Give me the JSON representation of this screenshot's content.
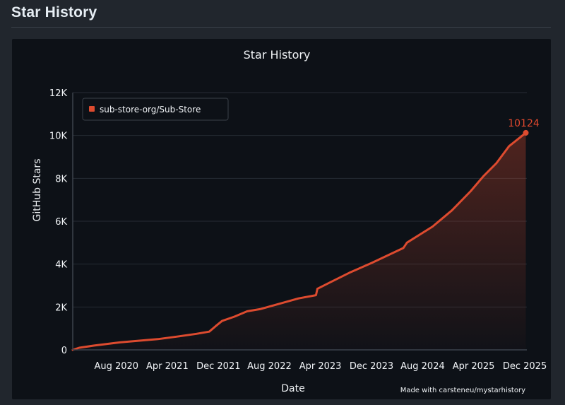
{
  "page": {
    "heading": "Star History"
  },
  "chart_data": {
    "type": "line",
    "title": "Star History",
    "xlabel": "Date",
    "ylabel": "GitHub Stars",
    "xlim": [
      "2020-01-20",
      "2025-12-25"
    ],
    "ylim": [
      0,
      12000
    ],
    "x_ticks": [
      {
        "date": "2020-08-15",
        "label": "Aug 2020"
      },
      {
        "date": "2021-04-15",
        "label": "Apr 2021"
      },
      {
        "date": "2021-12-15",
        "label": "Dec 2021"
      },
      {
        "date": "2022-08-15",
        "label": "Aug 2022"
      },
      {
        "date": "2023-04-15",
        "label": "Apr 2023"
      },
      {
        "date": "2023-12-15",
        "label": "Dec 2023"
      },
      {
        "date": "2024-08-15",
        "label": "Aug 2024"
      },
      {
        "date": "2025-04-15",
        "label": "Apr 2025"
      },
      {
        "date": "2025-12-15",
        "label": "Dec 2025"
      }
    ],
    "y_ticks": [
      {
        "value": 0,
        "label": "0"
      },
      {
        "value": 2000,
        "label": "2K"
      },
      {
        "value": 4000,
        "label": "4K"
      },
      {
        "value": 6000,
        "label": "6K"
      },
      {
        "value": 8000,
        "label": "8K"
      },
      {
        "value": 10000,
        "label": "10K"
      },
      {
        "value": 12000,
        "label": "12K"
      }
    ],
    "grid": true,
    "legend": {
      "placement": "top-left"
    },
    "series": [
      {
        "name": "sub-store-org/Sub-Store",
        "color": "#dd4b2f",
        "end_label": "10124",
        "points": [
          {
            "x": "2020-01-20",
            "y": 0
          },
          {
            "x": "2020-02-20",
            "y": 100
          },
          {
            "x": "2020-05-01",
            "y": 200
          },
          {
            "x": "2020-09-01",
            "y": 350
          },
          {
            "x": "2021-03-01",
            "y": 500
          },
          {
            "x": "2021-06-01",
            "y": 620
          },
          {
            "x": "2021-09-01",
            "y": 750
          },
          {
            "x": "2021-11-01",
            "y": 850
          },
          {
            "x": "2021-12-01",
            "y": 1100
          },
          {
            "x": "2022-01-01",
            "y": 1350
          },
          {
            "x": "2022-03-01",
            "y": 1550
          },
          {
            "x": "2022-05-01",
            "y": 1800
          },
          {
            "x": "2022-07-01",
            "y": 1900
          },
          {
            "x": "2022-10-01",
            "y": 2150
          },
          {
            "x": "2023-01-01",
            "y": 2400
          },
          {
            "x": "2023-03-25",
            "y": 2550
          },
          {
            "x": "2023-04-01",
            "y": 2850
          },
          {
            "x": "2023-06-01",
            "y": 3150
          },
          {
            "x": "2023-09-01",
            "y": 3600
          },
          {
            "x": "2023-12-15",
            "y": 4050
          },
          {
            "x": "2024-04-01",
            "y": 4550
          },
          {
            "x": "2024-05-15",
            "y": 4750
          },
          {
            "x": "2024-06-01",
            "y": 5000
          },
          {
            "x": "2024-10-01",
            "y": 5750
          },
          {
            "x": "2025-01-01",
            "y": 6500
          },
          {
            "x": "2025-04-01",
            "y": 7400
          },
          {
            "x": "2025-06-01",
            "y": 8100
          },
          {
            "x": "2025-08-01",
            "y": 8700
          },
          {
            "x": "2025-10-01",
            "y": 9500
          },
          {
            "x": "2025-12-20",
            "y": 10124
          }
        ]
      }
    ],
    "credit": "Made with carsteneu/mystarhistory"
  }
}
